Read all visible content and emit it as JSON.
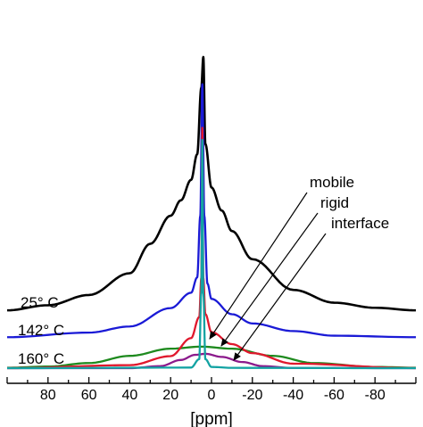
{
  "chart_data": {
    "type": "line",
    "xlabel": "[ppm]",
    "ylabel": "",
    "xlim": [
      100,
      -100
    ],
    "x_reversed": true,
    "x_ticks": [
      80,
      60,
      40,
      20,
      0,
      -20,
      -40,
      -60,
      -80
    ],
    "x_tick_labels": [
      "80",
      "60",
      "40",
      "20",
      "0",
      "-20",
      "-40",
      "-60",
      "-80"
    ],
    "grid": false,
    "legend": "none",
    "annotations": {
      "mobile": "mobile",
      "rigid": "rigid",
      "interface": "interface"
    },
    "series": [
      {
        "name": "25° C",
        "color": "#000000",
        "x": [
          100,
          80,
          60,
          40,
          30,
          20,
          15,
          10,
          7,
          5,
          4,
          3,
          0,
          -5,
          -10,
          -20,
          -40,
          -60,
          -80,
          -100
        ],
        "y": [
          1.0,
          3.0,
          7.0,
          15.5,
          27.0,
          38.0,
          44.0,
          52.0,
          62.0,
          88.0,
          100.0,
          66.0,
          49.0,
          40.0,
          32.0,
          21.0,
          9.0,
          4.0,
          2.0,
          1.0
        ]
      },
      {
        "name": "142° C",
        "color": "#1a1ad6",
        "x": [
          100,
          60,
          40,
          20,
          10,
          7,
          5.5,
          4.5,
          3.5,
          2,
          0,
          -10,
          -20,
          -40,
          -60,
          -100
        ],
        "y": [
          0.5,
          2.0,
          4.0,
          10.0,
          15.0,
          20.0,
          40.0,
          83.0,
          40.0,
          18.0,
          13.0,
          8.0,
          5.0,
          2.5,
          1.0,
          0.5
        ]
      },
      {
        "name": "160° C",
        "color": "#e0182d",
        "x": [
          100,
          40,
          20,
          10,
          6,
          5,
          4.5,
          4,
          3,
          0,
          -10,
          -20,
          -40,
          -100
        ],
        "y": [
          0.0,
          1.0,
          4.0,
          10.0,
          17.0,
          30.0,
          80.0,
          30.0,
          18.0,
          12.0,
          8.0,
          5.0,
          1.5,
          0.0
        ]
      },
      {
        "name": "mobile",
        "color": "#13a3a3",
        "x": [
          100,
          10,
          6,
          5,
          4.5,
          4,
          3,
          0,
          -10,
          -100
        ],
        "y": [
          0.0,
          0.2,
          3.0,
          25.0,
          76.0,
          25.0,
          3.0,
          0.4,
          0.1,
          0.0
        ]
      },
      {
        "name": "rigid",
        "color": "#1e8a1e",
        "x": [
          100,
          80,
          60,
          40,
          20,
          5,
          -10,
          -30,
          -50,
          -80,
          -100
        ],
        "y": [
          0.2,
          0.8,
          2.5,
          6.0,
          9.5,
          10.5,
          9.5,
          6.0,
          2.5,
          0.6,
          0.2
        ]
      },
      {
        "name": "interface",
        "color": "#8c1a8c",
        "x": [
          100,
          40,
          25,
          15,
          8,
          3,
          -5,
          -15,
          -25,
          -40,
          -100
        ],
        "y": [
          0.0,
          0.0,
          1.0,
          4.0,
          6.5,
          7.0,
          5.5,
          3.0,
          1.0,
          0.1,
          0.0
        ]
      }
    ],
    "curve_labels": [
      "25° C",
      "142° C",
      "160° C"
    ]
  }
}
